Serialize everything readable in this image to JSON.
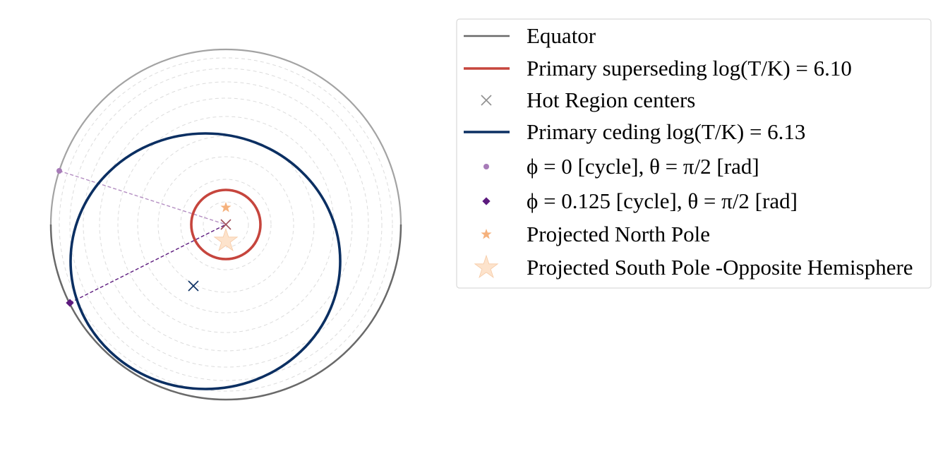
{
  "colors": {
    "equator": "#696969",
    "rim_light": "#a3a3a3",
    "grid": "#dcdcdc",
    "primary_superseding": "#c6453d",
    "primary_ceding": "#0b2f62",
    "hot_region_centers_legend": "#909090",
    "center_marker_superseding": "#a0505a",
    "center_marker_ceding": "#0b2f62",
    "phi0_point": "#a77bb8",
    "phi0125_point": "#5c1a7e",
    "north_pole": "#f5b17c",
    "south_pole": "#fde3cc",
    "south_pole_edge": "#f6caa5",
    "legend_border": "#d9d9d9"
  },
  "legend": {
    "items": [
      {
        "id": "equator",
        "label": "Equator",
        "symbol": "line-gray"
      },
      {
        "id": "superseding",
        "label": "Primary superseding log(T/K) = 6.10",
        "symbol": "line-red"
      },
      {
        "id": "centers",
        "label": "Hot Region centers",
        "symbol": "x-marker"
      },
      {
        "id": "ceding",
        "label": "Primary ceding log(T/K) = 6.13",
        "symbol": "line-navy"
      },
      {
        "id": "phi0",
        "label": "ϕ = 0 [cycle], θ = π/2 [rad]",
        "symbol": "dot-light-purple"
      },
      {
        "id": "phi0125",
        "label": "ϕ = 0.125 [cycle], θ = π/2 [rad]",
        "symbol": "diamond-purple"
      },
      {
        "id": "north",
        "label": "Projected North Pole",
        "symbol": "small-star"
      },
      {
        "id": "south",
        "label": "Projected South Pole  -Opposite Hemisphere",
        "symbol": "large-star"
      }
    ]
  }
}
